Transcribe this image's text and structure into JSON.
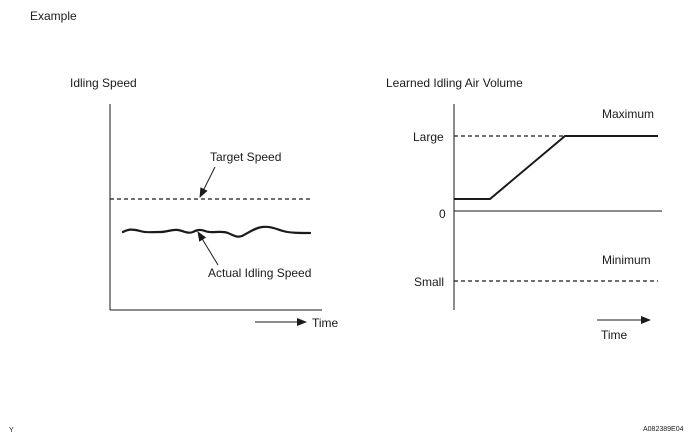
{
  "header": {
    "title": "Example"
  },
  "left_chart": {
    "title": "Idling Speed",
    "target_label": "Target Speed",
    "actual_label": "Actual Idling Speed",
    "time_label": "Time"
  },
  "right_chart": {
    "title": "Learned Idling Air Volume",
    "maximum_label": "Maximum",
    "minimum_label": "Minimum",
    "large_label": "Large",
    "zero_label": "0",
    "small_label": "Small",
    "time_label": "Time"
  },
  "footer": {
    "left_mark": "Y",
    "figure_id": "A082389E04"
  },
  "colors": {
    "ink": "#1a1a1a",
    "background": "#ffffff"
  }
}
